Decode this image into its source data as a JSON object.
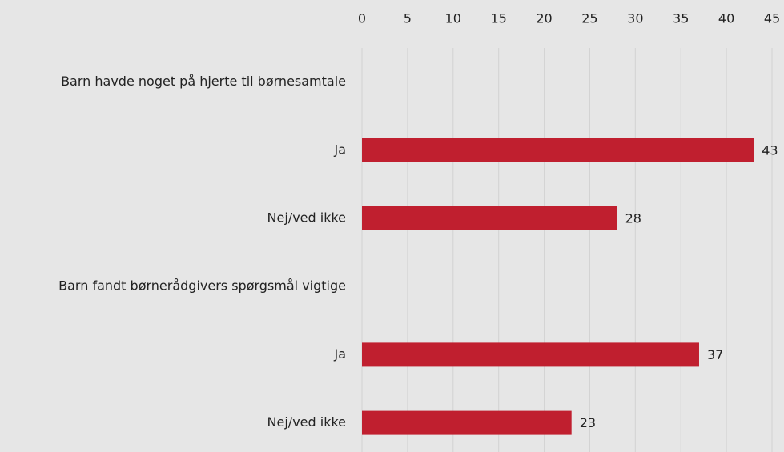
{
  "chart_data": {
    "type": "hbar",
    "categories": [
      "Barn havde noget på hjerte til børnesamtale",
      "Ja",
      "Nej/ved ikke",
      "Barn fandt børnerådgivers spørgsmål vigtige",
      "Ja",
      "Nej/ved ikke"
    ],
    "values": [
      null,
      43,
      28,
      null,
      37,
      23
    ],
    "color": "#c01f2f",
    "xlim": [
      0,
      45
    ],
    "xticks": [
      0,
      5,
      10,
      15,
      20,
      25,
      30,
      35,
      40,
      45
    ],
    "grid": true
  }
}
